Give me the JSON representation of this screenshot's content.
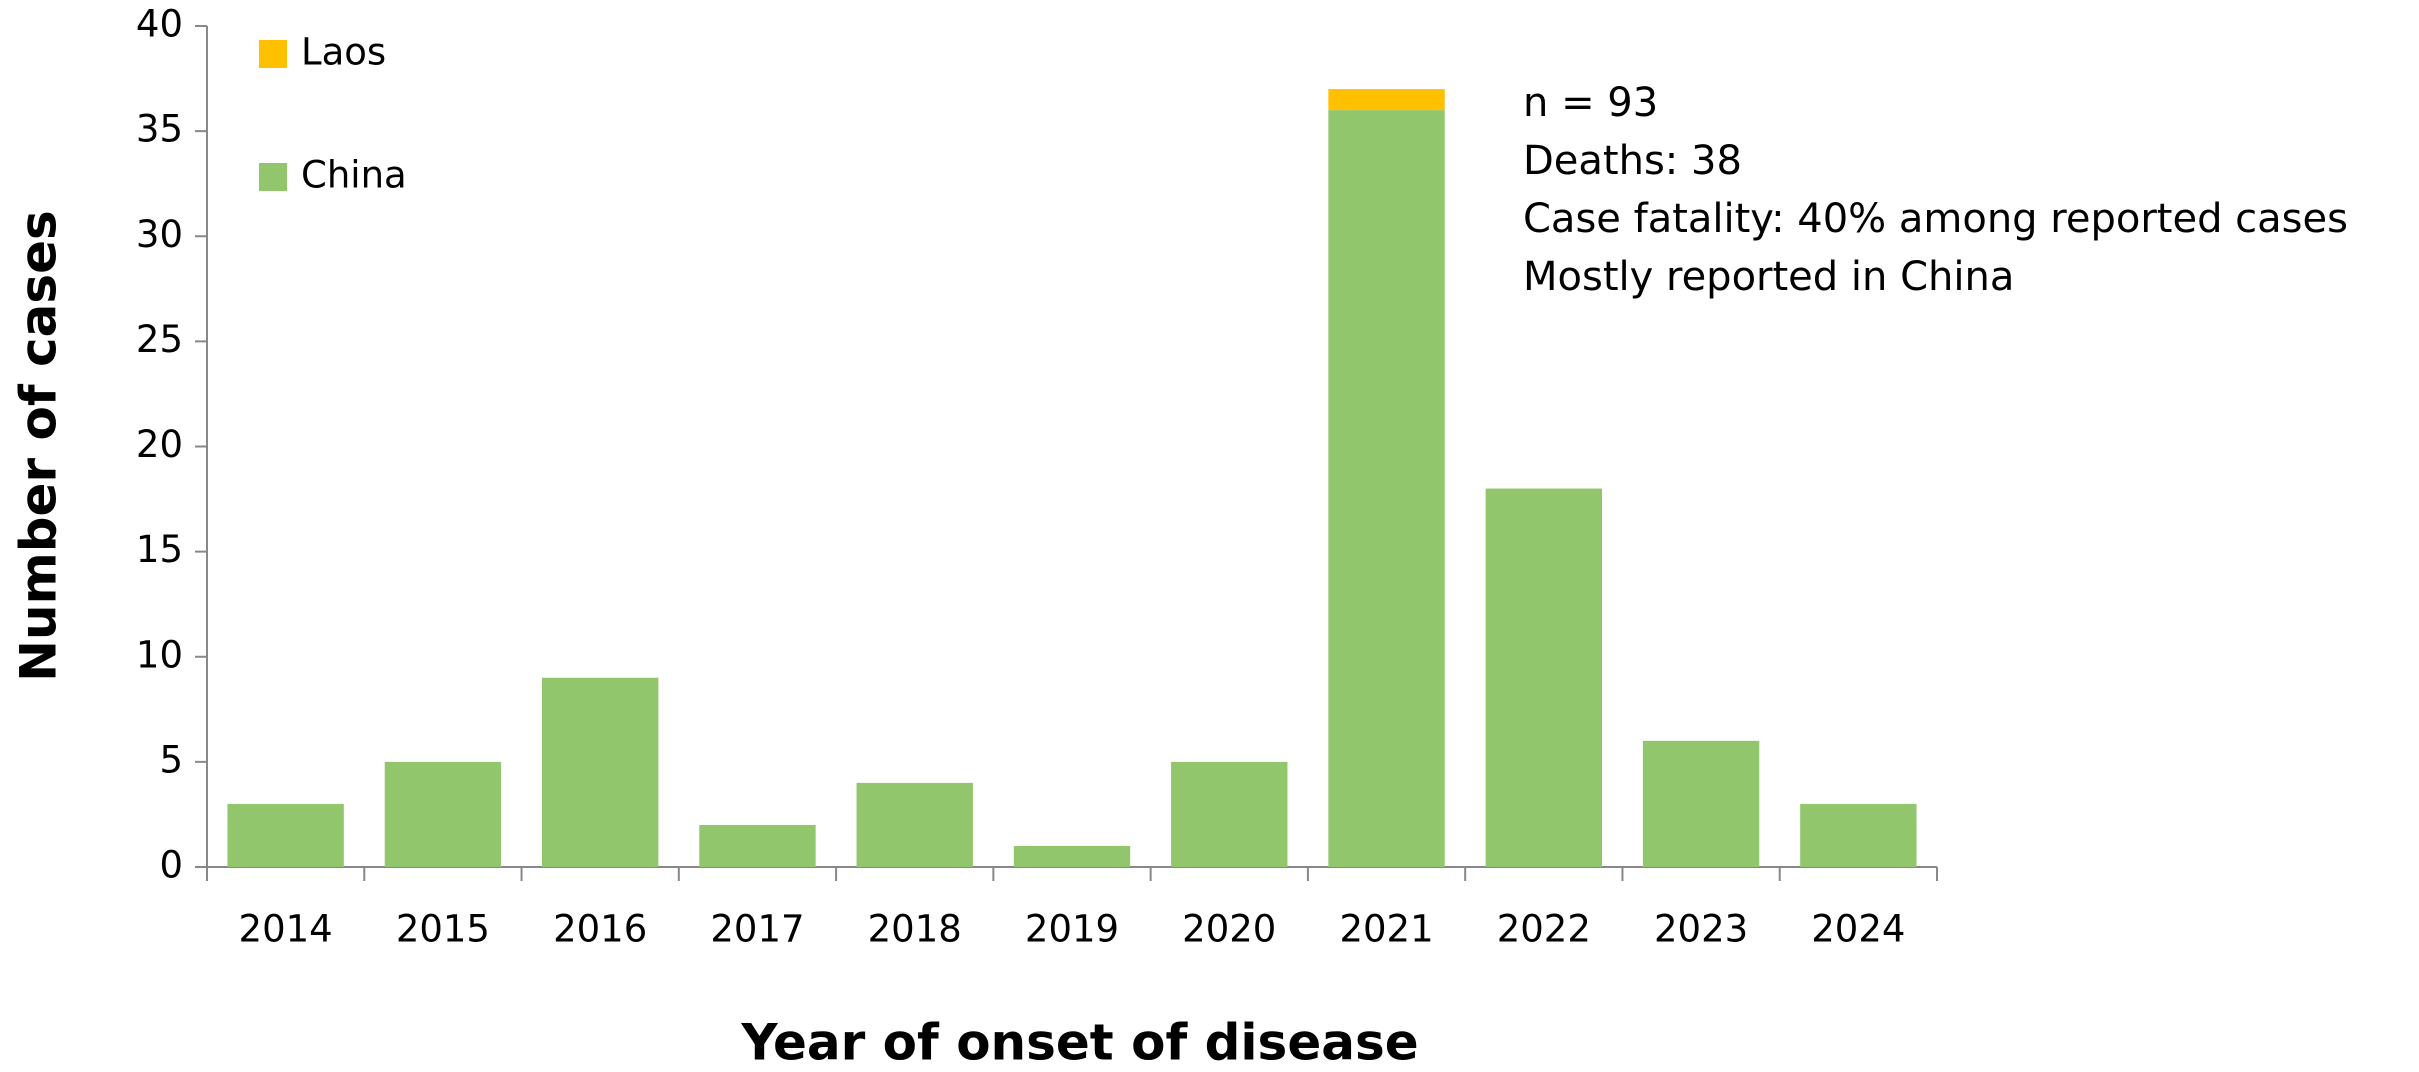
{
  "chart_data": {
    "type": "stacked_bar",
    "xlabel": "Year of onset of disease",
    "ylabel": "Number of cases",
    "categories": [
      "2014",
      "2015",
      "2016",
      "2017",
      "2018",
      "2019",
      "2020",
      "2021",
      "2022",
      "2023",
      "2024"
    ],
    "series": [
      {
        "name": "China",
        "color": "#92c66c",
        "values": [
          3,
          5,
          9,
          2,
          4,
          1,
          5,
          36,
          18,
          6,
          3
        ]
      },
      {
        "name": "Laos",
        "color": "#ffc000",
        "values": [
          0,
          0,
          0,
          0,
          0,
          0,
          0,
          1,
          0,
          0,
          0
        ]
      }
    ],
    "ylim": [
      0,
      40
    ],
    "yticks": [
      0,
      5,
      10,
      15,
      20,
      25,
      30,
      35,
      40
    ],
    "annotations": [
      "n = 93",
      "Deaths: 38",
      "Case fatality: 40% among reported cases",
      "Mostly reported in China"
    ],
    "legend": "upper left"
  }
}
